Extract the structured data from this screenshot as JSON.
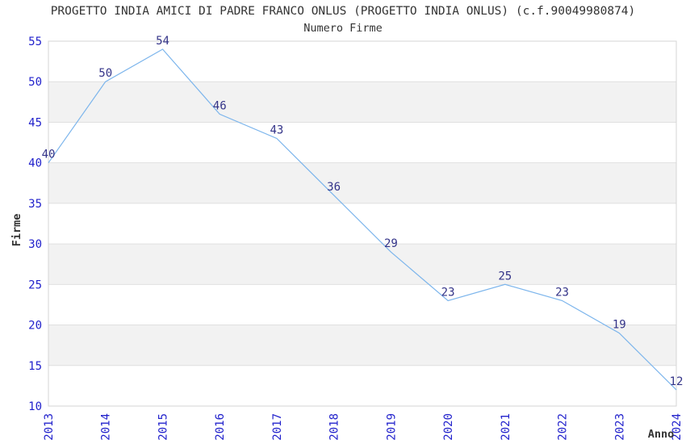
{
  "chart_data": {
    "type": "line",
    "title": "PROGETTO INDIA AMICI DI PADRE FRANCO ONLUS (PROGETTO INDIA ONLUS) (c.f.90049980874)",
    "subtitle": "Numero Firme",
    "xlabel": "Anno",
    "ylabel": "Firme",
    "categories": [
      "2013",
      "2014",
      "2015",
      "2016",
      "2017",
      "2018",
      "2019",
      "2020",
      "2021",
      "2022",
      "2023",
      "2024"
    ],
    "series": [
      {
        "name": "Numero Firme",
        "values": [
          40,
          50,
          54,
          46,
          43,
          36,
          29,
          23,
          25,
          23,
          19,
          12
        ]
      }
    ],
    "ylim": [
      10,
      55
    ],
    "yticks": [
      10,
      15,
      20,
      25,
      30,
      35,
      40,
      45,
      50,
      55
    ],
    "legend": "none",
    "grid": "horizontal",
    "band_style": "alternating-horizontal",
    "data_labels": "visible",
    "colors": {
      "line": "#7CB5EC",
      "tick_label": "#2222CC",
      "data_label": "#333388",
      "band": "#F2F2F2",
      "gridline": "#E0E0E0",
      "plot_border": "#D4D4D4",
      "text": "#333333",
      "background": "#FFFFFF"
    }
  }
}
